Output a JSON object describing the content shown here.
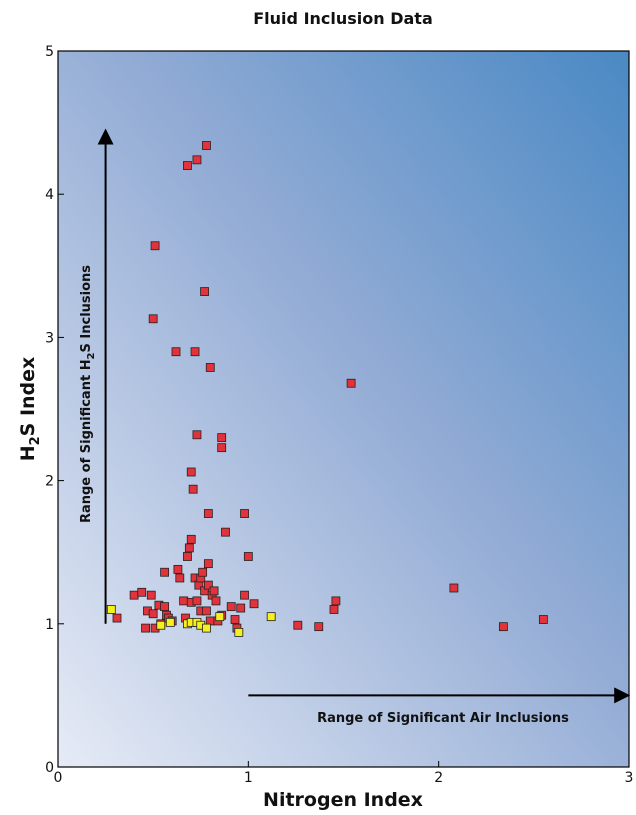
{
  "chart_data": {
    "type": "scatter",
    "title": "Fluid Inclusion Data",
    "xlabel": "Nitrogen Index",
    "ylabel": "H2S Index",
    "xlim": [
      0,
      3
    ],
    "ylim": [
      0,
      5
    ],
    "x_ticks": [
      "0",
      "1",
      "2",
      "3"
    ],
    "y_ticks": [
      "0",
      "1",
      "2",
      "3",
      "4",
      "5"
    ],
    "grid": false,
    "background": "gradient light-to-dark blue toward top-right",
    "series": [
      {
        "color": "#e2333c",
        "points": [
          [
            0.31,
            1.04
          ],
          [
            0.4,
            1.2
          ],
          [
            0.44,
            1.22
          ],
          [
            0.46,
            0.97
          ],
          [
            0.47,
            1.09
          ],
          [
            0.49,
            1.2
          ],
          [
            0.5,
            1.07
          ],
          [
            0.51,
            0.97
          ],
          [
            0.53,
            1.13
          ],
          [
            0.56,
            1.12
          ],
          [
            0.57,
            1.06
          ],
          [
            0.54,
            1.0
          ],
          [
            0.56,
            1.36
          ],
          [
            0.58,
            1.04
          ],
          [
            0.6,
            1.02
          ],
          [
            0.63,
            1.38
          ],
          [
            0.64,
            1.32
          ],
          [
            0.66,
            1.16
          ],
          [
            0.67,
            1.04
          ],
          [
            0.68,
            1.47
          ],
          [
            0.69,
            1.53
          ],
          [
            0.7,
            1.59
          ],
          [
            0.7,
            1.15
          ],
          [
            0.72,
            1.32
          ],
          [
            0.73,
            1.16
          ],
          [
            0.74,
            1.27
          ],
          [
            0.75,
            1.32
          ],
          [
            0.75,
            1.09
          ],
          [
            0.76,
            1.36
          ],
          [
            0.77,
            1.23
          ],
          [
            0.78,
            1.09
          ],
          [
            0.79,
            1.42
          ],
          [
            0.79,
            1.27
          ],
          [
            0.8,
            1.02
          ],
          [
            0.81,
            1.2
          ],
          [
            0.82,
            1.23
          ],
          [
            0.83,
            1.16
          ],
          [
            0.84,
            1.02
          ],
          [
            0.86,
            1.06
          ],
          [
            0.91,
            1.12
          ],
          [
            0.93,
            1.03
          ],
          [
            0.94,
            0.97
          ],
          [
            0.96,
            1.11
          ],
          [
            0.98,
            1.2
          ],
          [
            1.0,
            1.47
          ],
          [
            1.03,
            1.14
          ],
          [
            0.98,
            1.77
          ],
          [
            0.88,
            1.64
          ],
          [
            0.79,
            1.77
          ],
          [
            0.7,
            2.06
          ],
          [
            0.71,
            1.94
          ],
          [
            0.73,
            2.32
          ],
          [
            0.86,
            2.3
          ],
          [
            0.86,
            2.23
          ],
          [
            0.62,
            2.9
          ],
          [
            0.72,
            2.9
          ],
          [
            0.8,
            2.79
          ],
          [
            0.5,
            3.13
          ],
          [
            0.77,
            3.32
          ],
          [
            0.51,
            3.64
          ],
          [
            0.68,
            4.2
          ],
          [
            0.73,
            4.24
          ],
          [
            0.78,
            4.34
          ],
          [
            1.26,
            0.99
          ],
          [
            1.37,
            0.98
          ],
          [
            1.45,
            1.1
          ],
          [
            1.46,
            1.16
          ],
          [
            1.54,
            2.68
          ],
          [
            2.08,
            1.25
          ],
          [
            2.34,
            0.98
          ],
          [
            2.55,
            1.03
          ]
        ]
      },
      {
        "color": "#f6f01e",
        "points": [
          [
            0.28,
            1.1
          ],
          [
            0.54,
            0.99
          ],
          [
            0.59,
            1.01
          ],
          [
            0.68,
            1.0
          ],
          [
            0.7,
            1.01
          ],
          [
            0.73,
            1.01
          ],
          [
            0.75,
            0.99
          ],
          [
            0.78,
            0.97
          ],
          [
            0.85,
            1.05
          ],
          [
            0.95,
            0.94
          ],
          [
            1.12,
            1.05
          ]
        ]
      }
    ],
    "annotations": [
      {
        "text": "Range of Significant H2S Inclusions",
        "arrow": "vertical, x=0.25, from y=1 to y=4.45",
        "placement": "left of vertical arrow, rotated"
      },
      {
        "text": "Range of Significant Air Inclusions",
        "arrow": "horizontal, y=0.5, from x=1 to x=3",
        "placement": "below horizontal arrow"
      }
    ]
  }
}
